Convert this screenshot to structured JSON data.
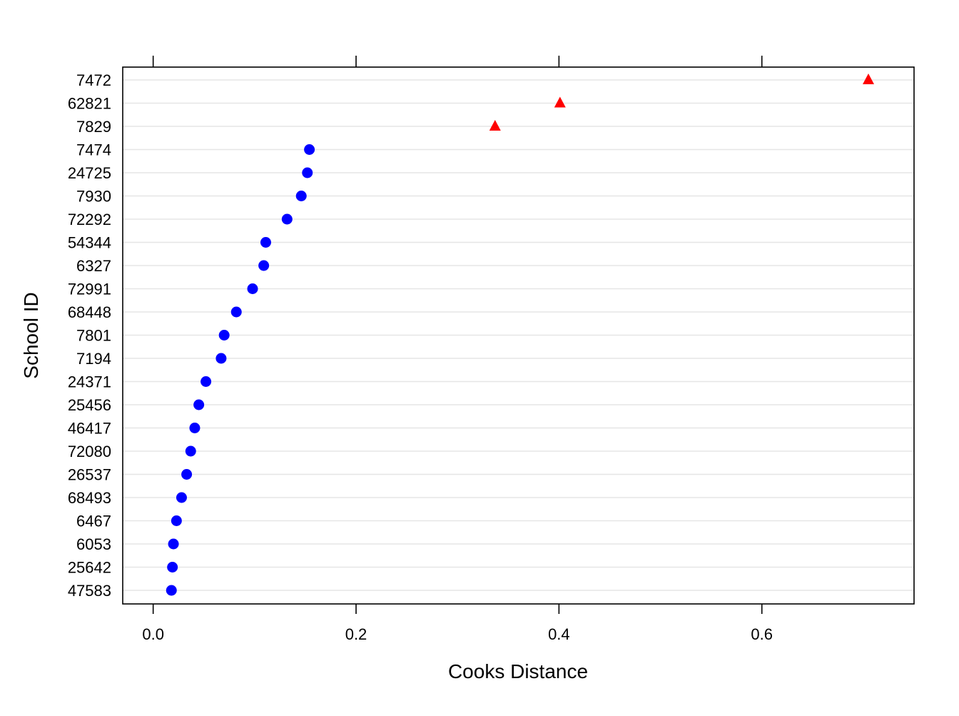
{
  "chart_data": {
    "type": "scatter",
    "subtype": "dotplot",
    "title": "",
    "xlabel": "Cooks Distance",
    "ylabel": "School ID",
    "xlim": [
      -0.03,
      0.75
    ],
    "x_ticks": [
      0.0,
      0.2,
      0.4,
      0.6
    ],
    "x_tick_labels": [
      "0.0",
      "0.2",
      "0.4",
      "0.6"
    ],
    "grid": "horizontal",
    "legend": "none",
    "categories": [
      "7472",
      "62821",
      "7829",
      "7474",
      "24725",
      "7930",
      "72292",
      "54344",
      "6327",
      "72991",
      "68448",
      "7801",
      "7194",
      "24371",
      "25456",
      "46417",
      "72080",
      "26537",
      "68493",
      "6467",
      "6053",
      "25642",
      "47583"
    ],
    "values": [
      0.705,
      0.401,
      0.337,
      0.154,
      0.152,
      0.146,
      0.132,
      0.111,
      0.109,
      0.098,
      0.082,
      0.07,
      0.067,
      0.052,
      0.045,
      0.041,
      0.037,
      0.033,
      0.028,
      0.023,
      0.02,
      0.019,
      0.018
    ],
    "flagged": [
      true,
      true,
      true,
      false,
      false,
      false,
      false,
      false,
      false,
      false,
      false,
      false,
      false,
      false,
      false,
      false,
      false,
      false,
      false,
      false,
      false,
      false,
      false
    ],
    "colors": {
      "normal": "#0000ff",
      "flagged": "#ff0000",
      "grid": "#e6e6e6",
      "frame": "#000000"
    },
    "markers": {
      "normal": "circle",
      "flagged": "triangle"
    }
  }
}
